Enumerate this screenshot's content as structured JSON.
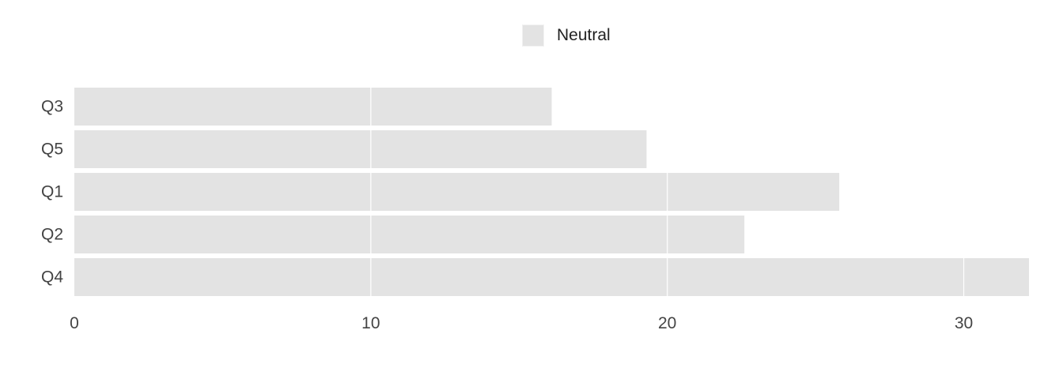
{
  "chart_data": {
    "type": "bar",
    "orientation": "horizontal",
    "categories": [
      "Q3",
      "Q5",
      "Q1",
      "Q2",
      "Q4"
    ],
    "series": [
      {
        "name": "Neutral",
        "color": "#e3e3e3",
        "values": [
          16.1,
          19.3,
          25.8,
          22.6,
          32.2
        ]
      }
    ],
    "xlim": [
      0,
      32.2
    ],
    "x_ticks": [
      0,
      10,
      20,
      30
    ],
    "x_tick_labels": [
      "0",
      "10",
      "20",
      "30"
    ],
    "grid": "vertical",
    "legend_position": "top",
    "title": "",
    "xlabel": "",
    "ylabel": ""
  }
}
